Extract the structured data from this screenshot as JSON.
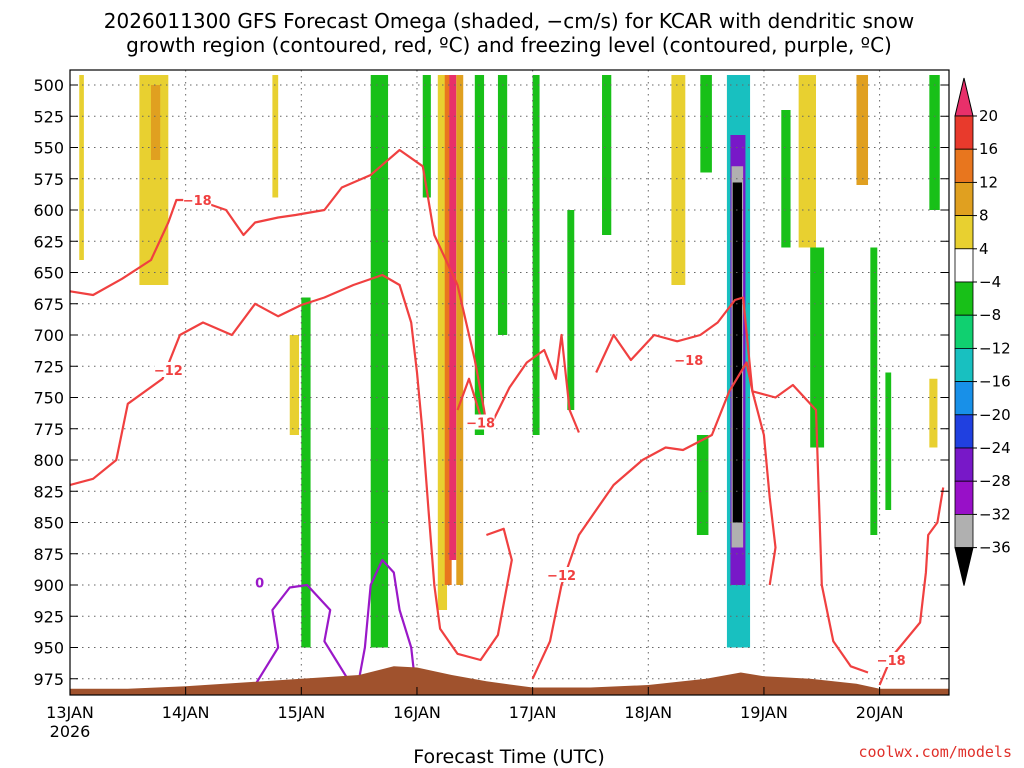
{
  "chart_data": {
    "type": "heatmap",
    "title": [
      "2026011300 GFS Forecast Omega (shaded, −cm/s) for KCAR with dendritic snow",
      "growth region (contoured, red, ºC) and freezing level (contoured, purple, ºC)"
    ],
    "xlabel": "Forecast Time (UTC)",
    "ylabel": "",
    "credit": "coolwx.com/models",
    "x_range": [
      0,
      7.6
    ],
    "x_units": "days since 13JAN 00Z",
    "x_ticks": [
      {
        "value": 0,
        "label": "13JAN",
        "sublabel": "2026"
      },
      {
        "value": 1,
        "label": "14JAN"
      },
      {
        "value": 2,
        "label": "15JAN"
      },
      {
        "value": 3,
        "label": "16JAN"
      },
      {
        "value": 4,
        "label": "17JAN"
      },
      {
        "value": 5,
        "label": "18JAN"
      },
      {
        "value": 6,
        "label": "19JAN"
      },
      {
        "value": 7,
        "label": "20JAN"
      }
    ],
    "y_range": [
      488,
      988
    ],
    "y_ticks": [
      500,
      525,
      550,
      575,
      600,
      625,
      650,
      675,
      700,
      725,
      750,
      775,
      800,
      825,
      850,
      875,
      900,
      925,
      950,
      975
    ],
    "colorbar": {
      "levels": [
        20,
        16,
        12,
        8,
        4,
        -4,
        -8,
        -12,
        -16,
        -20,
        -24,
        -28,
        -32,
        -36
      ],
      "labels": [
        "20",
        "16",
        "12",
        "8",
        "4",
        "−4",
        "−8",
        "−12",
        "−16",
        "−20",
        "−24",
        "−28",
        "−32",
        "−36"
      ],
      "colors": [
        "#e8306a",
        "#e83a2c",
        "#e8761e",
        "#e0a020",
        "#e8d030",
        "#ffffff",
        "#18c018",
        "#10d070",
        "#18c0c0",
        "#1890e8",
        "#2040e0",
        "#7818c8",
        "#9810c8",
        "#b0b0b0",
        "#000000"
      ]
    },
    "colors": {
      "dgz_contour": "#f04040",
      "freezing_contour": "#9a18c8",
      "terrain": "#a0522d",
      "grid": "#666666"
    },
    "omega_patches": [
      {
        "x0": 0.08,
        "x1": 0.12,
        "p0": 492,
        "p1": 640,
        "value": 5
      },
      {
        "x0": 0.6,
        "x1": 0.85,
        "p0": 492,
        "p1": 660,
        "value": 6
      },
      {
        "x0": 0.7,
        "x1": 0.78,
        "p0": 500,
        "p1": 560,
        "value": 10
      },
      {
        "x0": 1.75,
        "x1": 1.8,
        "p0": 492,
        "p1": 590,
        "value": 5
      },
      {
        "x0": 2.0,
        "x1": 2.08,
        "p0": 670,
        "p1": 950,
        "value": -6
      },
      {
        "x0": 1.9,
        "x1": 1.98,
        "p0": 700,
        "p1": 780,
        "value": 5
      },
      {
        "x0": 2.6,
        "x1": 2.75,
        "p0": 492,
        "p1": 950,
        "value": -6
      },
      {
        "x0": 3.05,
        "x1": 3.12,
        "p0": 492,
        "p1": 590,
        "value": -6
      },
      {
        "x0": 3.18,
        "x1": 3.26,
        "p0": 492,
        "p1": 920,
        "value": 6
      },
      {
        "x0": 3.24,
        "x1": 3.3,
        "p0": 492,
        "p1": 900,
        "value": 12
      },
      {
        "x0": 3.28,
        "x1": 3.34,
        "p0": 492,
        "p1": 880,
        "value": 20
      },
      {
        "x0": 3.34,
        "x1": 3.4,
        "p0": 492,
        "p1": 900,
        "value": 10
      },
      {
        "x0": 3.5,
        "x1": 3.58,
        "p0": 492,
        "p1": 780,
        "value": -6
      },
      {
        "x0": 3.7,
        "x1": 3.78,
        "p0": 492,
        "p1": 700,
        "value": -7
      },
      {
        "x0": 4.0,
        "x1": 4.06,
        "p0": 492,
        "p1": 780,
        "value": -6
      },
      {
        "x0": 4.3,
        "x1": 4.36,
        "p0": 600,
        "p1": 760,
        "value": -6
      },
      {
        "x0": 4.6,
        "x1": 4.68,
        "p0": 492,
        "p1": 620,
        "value": -6
      },
      {
        "x0": 5.2,
        "x1": 5.32,
        "p0": 492,
        "p1": 660,
        "value": 6
      },
      {
        "x0": 5.45,
        "x1": 5.55,
        "p0": 492,
        "p1": 570,
        "value": -6
      },
      {
        "x0": 5.68,
        "x1": 5.84,
        "p0": 492,
        "p1": 620,
        "value": 7
      },
      {
        "x0": 5.75,
        "x1": 5.8,
        "p0": 530,
        "p1": 580,
        "value": 14
      },
      {
        "x0": 6.15,
        "x1": 6.23,
        "p0": 520,
        "p1": 630,
        "value": -6
      },
      {
        "x0": 6.3,
        "x1": 6.45,
        "p0": 492,
        "p1": 630,
        "value": 6
      },
      {
        "x0": 6.8,
        "x1": 6.9,
        "p0": 492,
        "p1": 580,
        "value": 8
      },
      {
        "x0": 6.4,
        "x1": 6.52,
        "p0": 630,
        "p1": 790,
        "value": -6
      },
      {
        "x0": 6.92,
        "x1": 6.98,
        "p0": 630,
        "p1": 860,
        "value": -6
      },
      {
        "x0": 7.05,
        "x1": 7.1,
        "p0": 730,
        "p1": 840,
        "value": -6
      },
      {
        "x0": 7.43,
        "x1": 7.52,
        "p0": 492,
        "p1": 600,
        "value": -6
      },
      {
        "x0": 7.43,
        "x1": 7.5,
        "p0": 735,
        "p1": 790,
        "value": 5
      },
      {
        "x0": 5.42,
        "x1": 5.52,
        "p0": 780,
        "p1": 860,
        "value": -6
      },
      {
        "x0": 5.68,
        "x1": 5.88,
        "p0": 492,
        "p1": 950,
        "value": -14
      },
      {
        "x0": 5.71,
        "x1": 5.84,
        "p0": 540,
        "p1": 900,
        "value": -26
      },
      {
        "x0": 5.72,
        "x1": 5.82,
        "p0": 565,
        "p1": 870,
        "value": -34
      },
      {
        "x0": 5.73,
        "x1": 5.81,
        "p0": 578,
        "p1": 850,
        "value": -40
      }
    ],
    "contours": [
      {
        "kind": "dgz",
        "name": "minus-18-left",
        "label": "−18",
        "label_at": [
          1.1,
          592
        ],
        "points": [
          [
            0,
            665
          ],
          [
            0.2,
            668
          ],
          [
            0.45,
            655
          ],
          [
            0.7,
            640
          ],
          [
            0.85,
            610
          ],
          [
            0.92,
            592
          ],
          [
            1.1,
            592
          ],
          [
            1.35,
            600
          ],
          [
            1.5,
            620
          ],
          [
            1.6,
            610
          ],
          [
            1.8,
            606
          ],
          [
            1.95,
            604
          ],
          [
            2.2,
            600
          ],
          [
            2.35,
            582
          ],
          [
            2.6,
            572
          ],
          [
            2.85,
            552
          ],
          [
            3.05,
            565
          ],
          [
            3.15,
            620
          ],
          [
            3.35,
            660
          ],
          [
            3.5,
            720
          ],
          [
            3.58,
            760
          ],
          [
            3.6,
            772
          ]
        ]
      },
      {
        "kind": "dgz",
        "name": "minus-12-left",
        "label": "−12",
        "label_at": [
          0.85,
          728
        ],
        "points": [
          [
            0,
            820
          ],
          [
            0.2,
            815
          ],
          [
            0.4,
            800
          ],
          [
            0.5,
            755
          ],
          [
            0.8,
            735
          ],
          [
            0.95,
            700
          ],
          [
            1.15,
            690
          ],
          [
            1.4,
            700
          ],
          [
            1.6,
            675
          ],
          [
            1.8,
            685
          ],
          [
            2.0,
            676
          ],
          [
            2.2,
            670
          ],
          [
            2.45,
            660
          ],
          [
            2.7,
            652
          ],
          [
            2.85,
            660
          ],
          [
            2.95,
            690
          ],
          [
            3.0,
            730
          ],
          [
            3.05,
            780
          ],
          [
            3.1,
            840
          ],
          [
            3.15,
            900
          ],
          [
            3.2,
            935
          ],
          [
            3.35,
            955
          ],
          [
            3.55,
            960
          ],
          [
            3.7,
            940
          ],
          [
            3.82,
            880
          ],
          [
            3.75,
            855
          ],
          [
            3.6,
            860
          ]
        ]
      },
      {
        "kind": "dgz",
        "name": "minus-18-mid",
        "label": "−18",
        "label_at": [
          3.55,
          770
        ],
        "points": [
          [
            3.35,
            760
          ],
          [
            3.45,
            735
          ],
          [
            3.55,
            765
          ],
          [
            3.65,
            770
          ],
          [
            3.8,
            742
          ],
          [
            3.95,
            722
          ],
          [
            4.1,
            712
          ],
          [
            4.2,
            735
          ],
          [
            4.25,
            700
          ],
          [
            4.32,
            760
          ],
          [
            4.4,
            778
          ]
        ]
      },
      {
        "kind": "dgz",
        "name": "minus-12-right",
        "label": "−12",
        "label_at": [
          4.25,
          892
        ],
        "points": [
          [
            4.0,
            975
          ],
          [
            4.15,
            945
          ],
          [
            4.25,
            900
          ],
          [
            4.4,
            860
          ],
          [
            4.55,
            840
          ],
          [
            4.7,
            820
          ],
          [
            4.95,
            800
          ],
          [
            5.15,
            790
          ],
          [
            5.3,
            792
          ],
          [
            5.55,
            780
          ],
          [
            5.7,
            745
          ],
          [
            5.85,
            722
          ],
          [
            5.9,
            745
          ],
          [
            6.0,
            780
          ],
          [
            6.05,
            830
          ],
          [
            6.1,
            870
          ],
          [
            6.05,
            900
          ]
        ]
      },
      {
        "kind": "dgz",
        "name": "minus-18-right",
        "label": "−18",
        "label_at": [
          5.35,
          720
        ],
        "points": [
          [
            4.55,
            730
          ],
          [
            4.7,
            700
          ],
          [
            4.85,
            720
          ],
          [
            5.05,
            700
          ],
          [
            5.25,
            705
          ],
          [
            5.45,
            700
          ],
          [
            5.6,
            690
          ],
          [
            5.75,
            672
          ],
          [
            5.82,
            670
          ],
          [
            5.9,
            745
          ],
          [
            6.1,
            750
          ],
          [
            6.25,
            740
          ],
          [
            6.45,
            760
          ],
          [
            6.5,
            900
          ],
          [
            6.6,
            945
          ],
          [
            6.75,
            965
          ],
          [
            6.9,
            970
          ]
        ]
      },
      {
        "kind": "dgz",
        "name": "minus-18-far",
        "label": "−18",
        "label_at": [
          7.1,
          960
        ],
        "points": [
          [
            7.0,
            980
          ],
          [
            7.1,
            958
          ],
          [
            7.35,
            930
          ],
          [
            7.4,
            890
          ],
          [
            7.42,
            860
          ],
          [
            7.5,
            850
          ],
          [
            7.55,
            822
          ]
        ]
      },
      {
        "kind": "freezing",
        "name": "zero-left",
        "label": "0",
        "label_at": [
          1.64,
          898
        ],
        "points": [
          [
            1.6,
            980
          ],
          [
            1.7,
            965
          ],
          [
            1.8,
            950
          ],
          [
            1.75,
            920
          ],
          [
            1.9,
            902
          ],
          [
            2.05,
            900
          ],
          [
            2.25,
            920
          ],
          [
            2.2,
            945
          ],
          [
            2.3,
            960
          ],
          [
            2.4,
            975
          ]
        ]
      },
      {
        "kind": "freezing",
        "name": "zero-mid",
        "label": "",
        "label_at": [
          2.6,
          900
        ],
        "points": [
          [
            2.5,
            975
          ],
          [
            2.55,
            950
          ],
          [
            2.6,
            900
          ],
          [
            2.7,
            880
          ],
          [
            2.8,
            890
          ],
          [
            2.85,
            920
          ],
          [
            2.95,
            950
          ],
          [
            2.98,
            975
          ]
        ]
      }
    ],
    "terrain": {
      "x": [
        0,
        0.5,
        1.0,
        1.5,
        2.0,
        2.5,
        2.8,
        3.0,
        3.3,
        3.6,
        4.0,
        4.5,
        5.0,
        5.5,
        5.8,
        6.0,
        6.4,
        6.8,
        7.0,
        7.3,
        7.6
      ],
      "p": [
        983,
        983,
        981,
        978,
        975,
        972,
        965,
        966,
        972,
        977,
        982,
        982,
        980,
        975,
        970,
        973,
        975,
        979,
        983,
        983,
        983
      ]
    }
  }
}
